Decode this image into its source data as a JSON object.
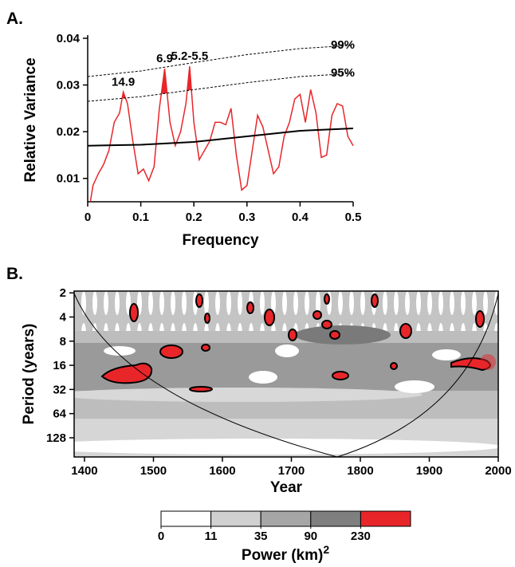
{
  "chart_data": [
    {
      "type": "line",
      "panel": "A.",
      "xlabel": "Frequency",
      "ylabel": "Relative Variance",
      "xlim": [
        0,
        0.5
      ],
      "ylim": [
        0.005,
        0.04
      ],
      "xticks": [
        0,
        0.1,
        0.2,
        0.3,
        0.4,
        0.5
      ],
      "yticks": [
        0.01,
        0.02,
        0.03,
        0.04
      ],
      "series": [
        {
          "color": "#e8262a",
          "x": [
            0.005,
            0.01,
            0.02,
            0.03,
            0.04,
            0.05,
            0.06,
            0.067,
            0.075,
            0.085,
            0.095,
            0.105,
            0.115,
            0.125,
            0.135,
            0.145,
            0.155,
            0.165,
            0.175,
            0.185,
            0.192,
            0.2,
            0.21,
            0.22,
            0.23,
            0.24,
            0.25,
            0.26,
            0.27,
            0.28,
            0.29,
            0.3,
            0.31,
            0.32,
            0.33,
            0.34,
            0.35,
            0.36,
            0.37,
            0.38,
            0.39,
            0.4,
            0.41,
            0.42,
            0.43,
            0.44,
            0.45,
            0.46,
            0.47,
            0.48,
            0.49,
            0.5
          ],
          "values": [
            0.005,
            0.0085,
            0.011,
            0.013,
            0.016,
            0.022,
            0.024,
            0.0285,
            0.026,
            0.018,
            0.011,
            0.012,
            0.0095,
            0.0125,
            0.025,
            0.0335,
            0.022,
            0.017,
            0.02,
            0.026,
            0.034,
            0.022,
            0.014,
            0.016,
            0.018,
            0.022,
            0.022,
            0.0215,
            0.025,
            0.015,
            0.0075,
            0.0085,
            0.016,
            0.0235,
            0.021,
            0.016,
            0.011,
            0.0125,
            0.019,
            0.022,
            0.027,
            0.028,
            0.022,
            0.029,
            0.024,
            0.0145,
            0.015,
            0.0235,
            0.026,
            0.0255,
            0.019,
            0.017
          ]
        },
        {
          "color": "#000000",
          "x": [
            0,
            0.1,
            0.2,
            0.3,
            0.4,
            0.5
          ],
          "values": [
            0.017,
            0.0172,
            0.0178,
            0.019,
            0.0202,
            0.0207
          ]
        },
        {
          "name": "95%",
          "color": "#000000",
          "dashed": true,
          "x": [
            0,
            0.1,
            0.2,
            0.3,
            0.4,
            0.5
          ],
          "values": [
            0.0265,
            0.0275,
            0.029,
            0.0305,
            0.0318,
            0.0325
          ]
        },
        {
          "name": "99%",
          "color": "#000000",
          "dashed": true,
          "x": [
            0,
            0.1,
            0.2,
            0.3,
            0.4,
            0.5
          ],
          "values": [
            0.0318,
            0.033,
            0.0348,
            0.0365,
            0.0378,
            0.0385
          ]
        }
      ],
      "annotations": [
        {
          "text": "14.9",
          "x": 0.067,
          "y": 0.0285
        },
        {
          "text": "6.9",
          "x": 0.145,
          "y": 0.0335
        },
        {
          "text": "5.2-5.5",
          "x": 0.192,
          "y": 0.034
        }
      ]
    },
    {
      "type": "wavelet",
      "panel": "B.",
      "xlabel": "Year",
      "ylabel": "Period (years)",
      "xlim": [
        1385,
        2000
      ],
      "ylim": [
        1.9,
        222
      ],
      "y_log": true,
      "y_inverted": true,
      "xticks": [
        1400,
        1500,
        1600,
        1700,
        1800,
        1900,
        2000
      ],
      "yticks": [
        2,
        4,
        8,
        16,
        32,
        64,
        128
      ],
      "levels": [
        0,
        11,
        35,
        90,
        230
      ],
      "level_colors": [
        "#ffffff",
        "#d0d0d0",
        "#a6a6a6",
        "#7f7f7f",
        "#e8262a"
      ],
      "colorbar_label": "Power (km)",
      "colorbar_label_sup": "2"
    }
  ]
}
